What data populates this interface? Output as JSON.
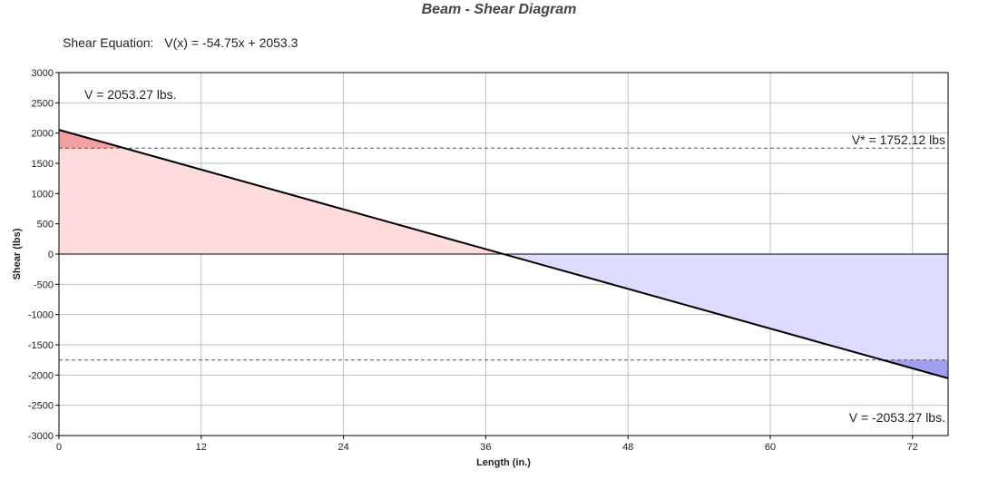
{
  "chart_data": {
    "type": "area",
    "title": "Beam - Shear Diagram",
    "equation_label": "Shear Equation:",
    "equation": "V(x) = -54.75x + 2053.3",
    "xlabel": "Length (in.)",
    "ylabel": "Shear (lbs)",
    "xlim": [
      0,
      75
    ],
    "ylim": [
      -3000,
      3000
    ],
    "x_ticks": [
      0,
      12,
      24,
      36,
      48,
      60,
      72
    ],
    "x_tick_labels": [
      "0",
      "12",
      "24",
      "36",
      "48",
      "60",
      "72"
    ],
    "y_ticks": [
      3000,
      2500,
      2000,
      1500,
      1000,
      500,
      0,
      -500,
      -1000,
      -1500,
      -2000,
      -2500,
      -3000
    ],
    "y_tick_labels": [
      "3000",
      "2500",
      "2000",
      "1500",
      "1000",
      "500",
      "0",
      "-500",
      "-1000",
      "-1500",
      "-2000",
      "-2500",
      "-3000"
    ],
    "grid": true,
    "series": [
      {
        "x": [
          0,
          75
        ],
        "y": [
          2053.27,
          -2053.27
        ],
        "color": "#000000"
      }
    ],
    "zero_crossing_x": 37.5,
    "reference_lines": [
      {
        "y": 1752.12,
        "label": "V* = 1752.12 lbs"
      },
      {
        "y": -1752.12,
        "label": ""
      }
    ],
    "annotations": {
      "v_start": "V = 2053.27 lbs.",
      "v_end": "V = -2053.27 lbs."
    },
    "colors": {
      "positive_fill": "#ffdcdc",
      "positive_exceed_fill": "#f4a0a0",
      "negative_fill": "#dcdcff",
      "negative_exceed_fill": "#a0a0f0",
      "line": "#000000",
      "grid": "#c0c0c0"
    }
  }
}
